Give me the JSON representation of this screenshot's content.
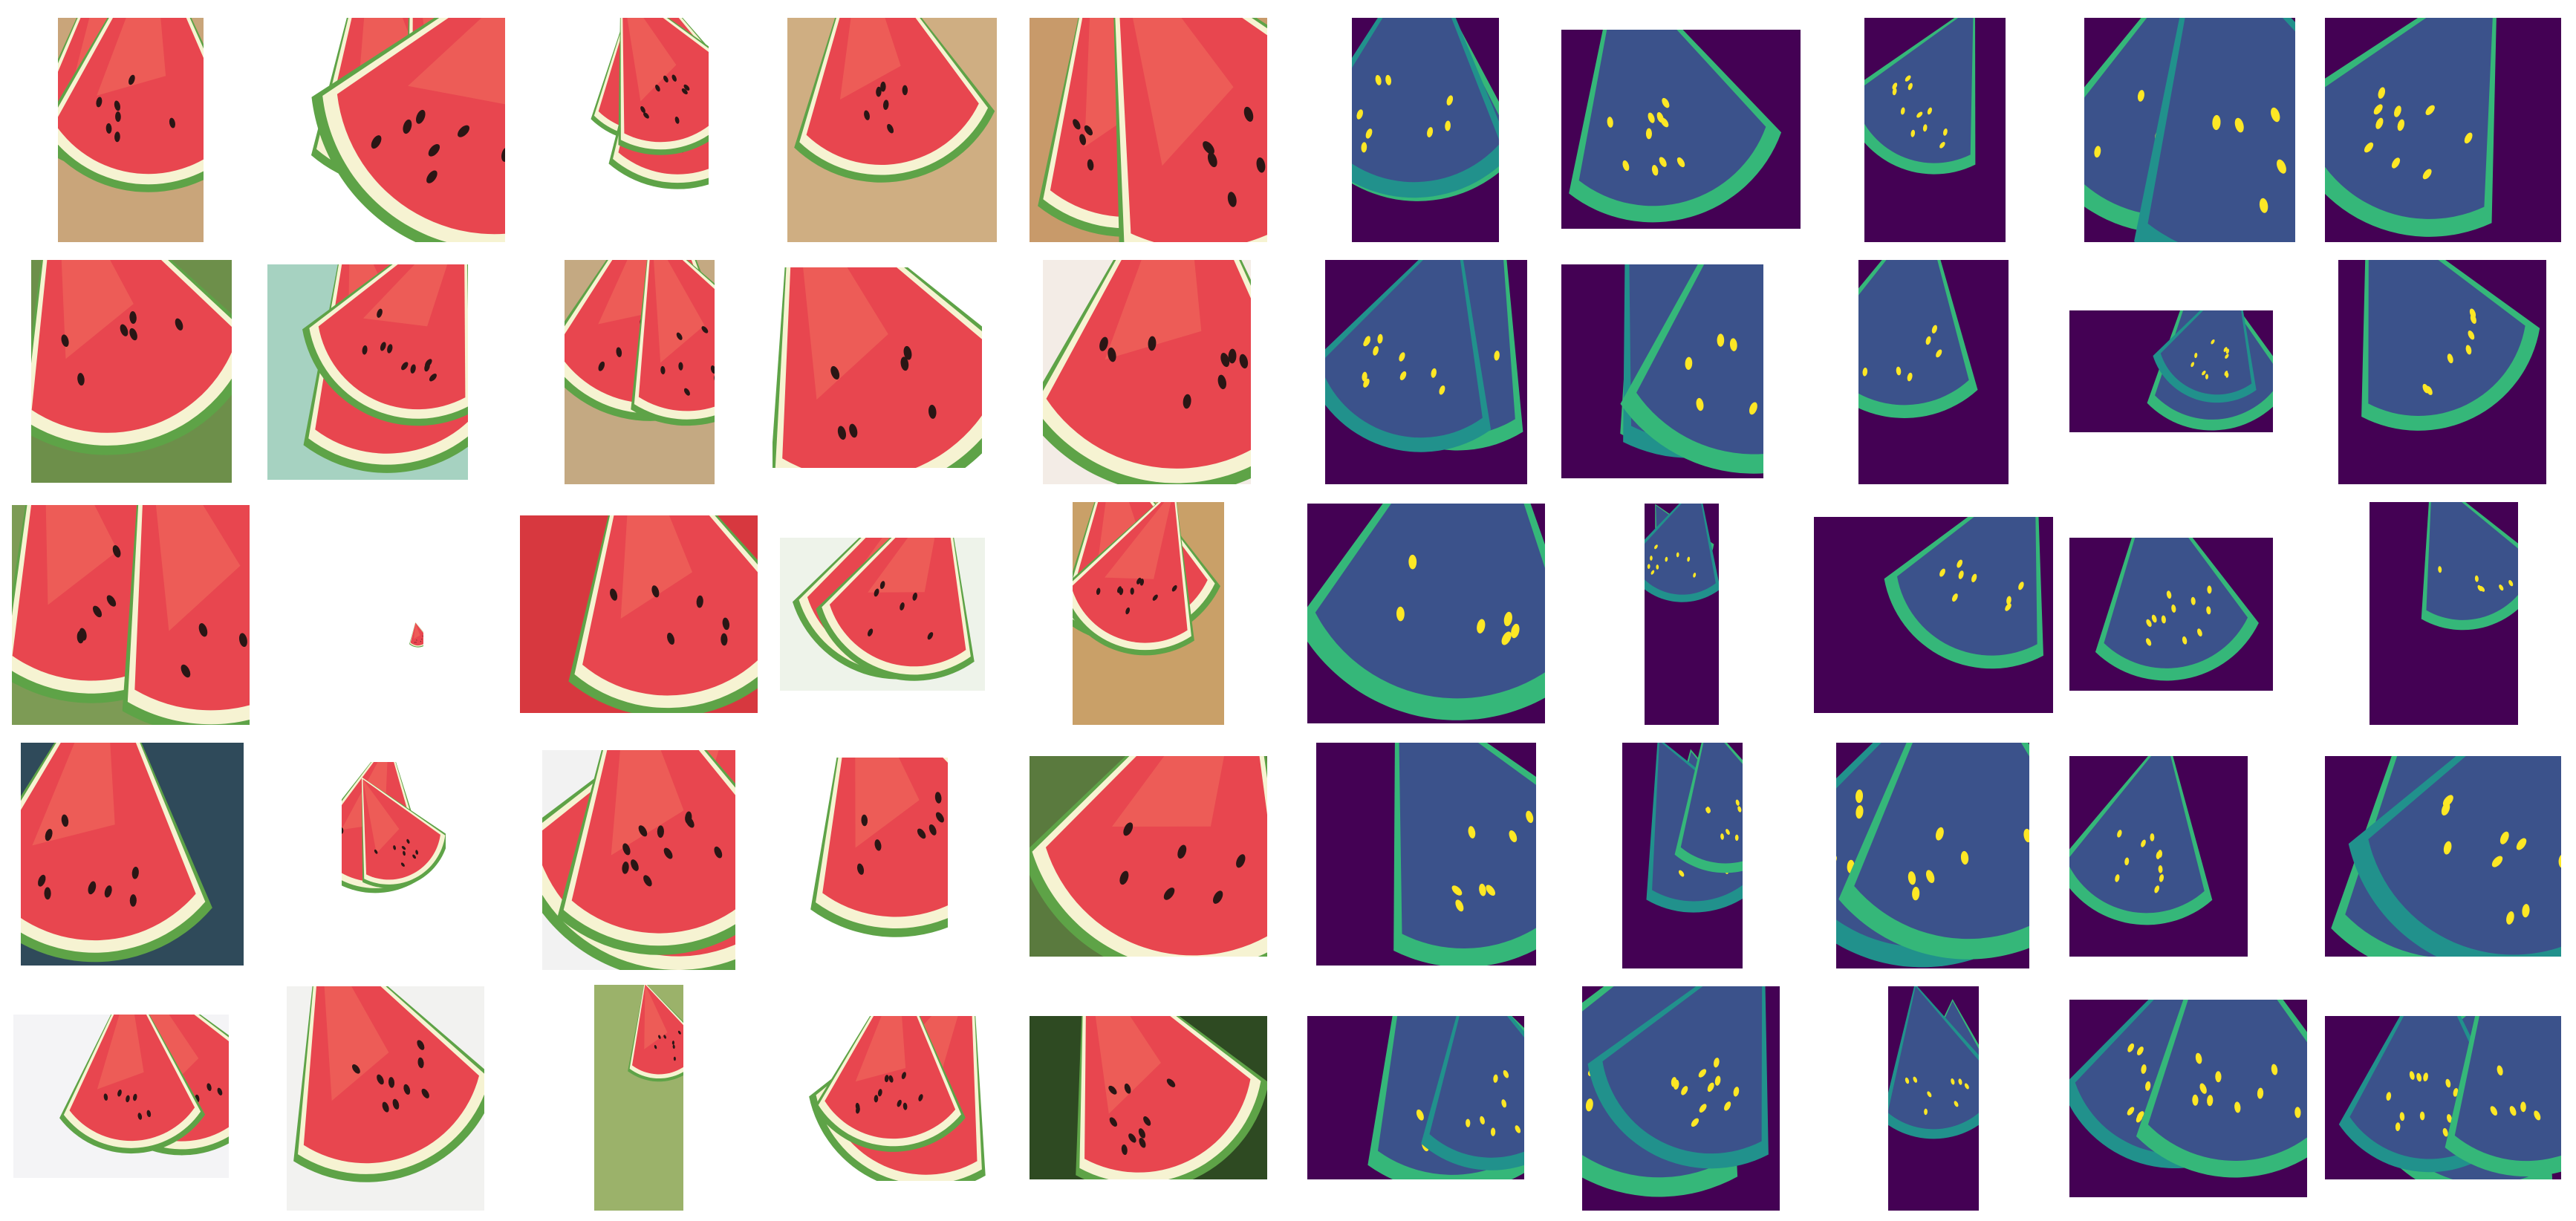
{
  "colors": {
    "flesh": "#e8464f",
    "flesh_light": "#f0705f",
    "flesh_deep": "#d12f3d",
    "rind_white": "#f6f3d2",
    "rind_green": "#5ea347",
    "rind_dark": "#2e6a2a",
    "seed": "#2a1615",
    "mask_background": "#440154",
    "mask_flesh": "#3b528b",
    "mask_rind": "#35b779",
    "mask_rind_alt": "#21918c",
    "mask_seed": "#fde725"
  },
  "grid": {
    "rows": 5,
    "photo_columns": 5,
    "mask_columns": 5
  },
  "photo_backgrounds": [
    [
      "#c9a57a",
      "#ffffff",
      "#ffffff",
      "#cfae82",
      "#c89a6a"
    ],
    [
      "#6d8f4a",
      "#a6d2c1",
      "#c4a982",
      "#ffffff",
      "#f3ece6"
    ],
    [
      "#7d9b55",
      "#ffffff",
      "#d7383f",
      "#eef3ea",
      "#c9a068"
    ],
    [
      "#2f4a5a",
      "#ffffff",
      "#f2f2f2",
      "#ffffff",
      "#5a7a3e"
    ],
    [
      "#f4f4f6",
      "#f2f2f0",
      "#9bb26a",
      "#ffffff",
      "#2e4a22"
    ]
  ]
}
